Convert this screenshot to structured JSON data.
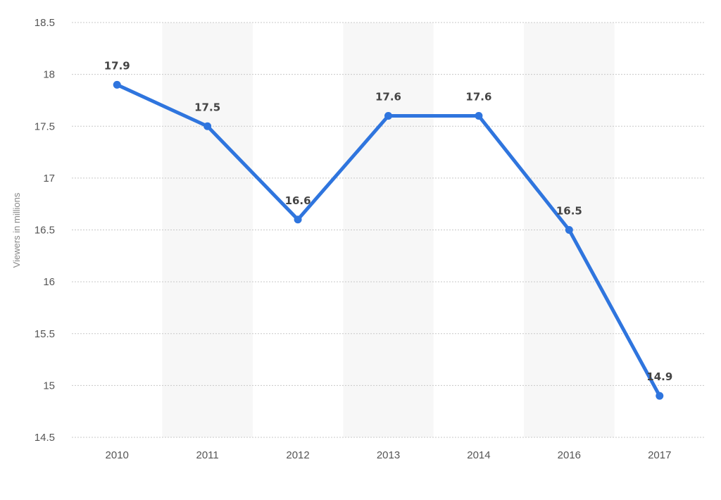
{
  "chart_data": {
    "type": "line",
    "title": "",
    "xlabel": "",
    "ylabel": "Viewers in millions",
    "categories": [
      "2010",
      "2011",
      "2012",
      "2013",
      "2014",
      "2016",
      "2017"
    ],
    "series": [
      {
        "values": [
          17.9,
          17.5,
          16.6,
          17.6,
          17.6,
          16.5,
          14.9
        ],
        "color": "#2f75de"
      }
    ],
    "data_labels": [
      "17.9",
      "17.5",
      "16.6",
      "17.6",
      "17.6",
      "16.5",
      "14.9"
    ],
    "ylim": [
      14.5,
      18.5
    ],
    "yticks": [
      "14.5",
      "15",
      "15.5",
      "16",
      "16.5",
      "17",
      "17.5",
      "18",
      "18.5"
    ],
    "grid": true,
    "alternating_bands": true,
    "legend": "none"
  }
}
